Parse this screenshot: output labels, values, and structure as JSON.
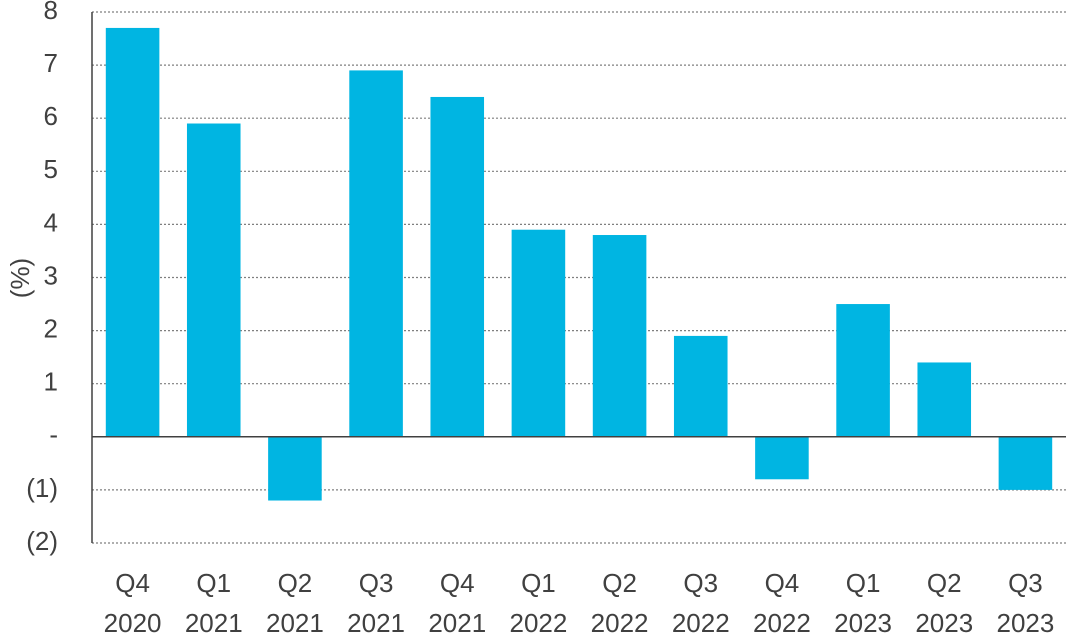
{
  "chart_data": {
    "type": "bar",
    "title": "",
    "xlabel": "",
    "ylabel": "(%)",
    "ylim": [
      -2,
      8
    ],
    "yticks": [
      {
        "value": 8,
        "label": "8"
      },
      {
        "value": 7,
        "label": "7"
      },
      {
        "value": 6,
        "label": "6"
      },
      {
        "value": 5,
        "label": "5"
      },
      {
        "value": 4,
        "label": "4"
      },
      {
        "value": 3,
        "label": "3"
      },
      {
        "value": 2,
        "label": "2"
      },
      {
        "value": 1,
        "label": "1"
      },
      {
        "value": 0,
        "label": "-"
      },
      {
        "value": -1,
        "label": "(1)"
      },
      {
        "value": -2,
        "label": "(2)"
      }
    ],
    "categories": [
      {
        "line1": "Q4",
        "line2": "2020"
      },
      {
        "line1": "Q1",
        "line2": "2021"
      },
      {
        "line1": "Q2",
        "line2": "2021"
      },
      {
        "line1": "Q3",
        "line2": "2021"
      },
      {
        "line1": "Q4",
        "line2": "2021"
      },
      {
        "line1": "Q1",
        "line2": "2022"
      },
      {
        "line1": "Q2",
        "line2": "2022"
      },
      {
        "line1": "Q3",
        "line2": "2022"
      },
      {
        "line1": "Q4",
        "line2": "2022"
      },
      {
        "line1": "Q1",
        "line2": "2023"
      },
      {
        "line1": "Q2",
        "line2": "2023"
      },
      {
        "line1": "Q3",
        "line2": "2023"
      }
    ],
    "values": [
      7.7,
      5.9,
      -1.2,
      6.9,
      6.4,
      3.9,
      3.8,
      1.9,
      -0.8,
      2.5,
      1.4,
      -1.0
    ],
    "grid": true,
    "bar_color": "#00B5E2",
    "axis_color": "#404040"
  }
}
